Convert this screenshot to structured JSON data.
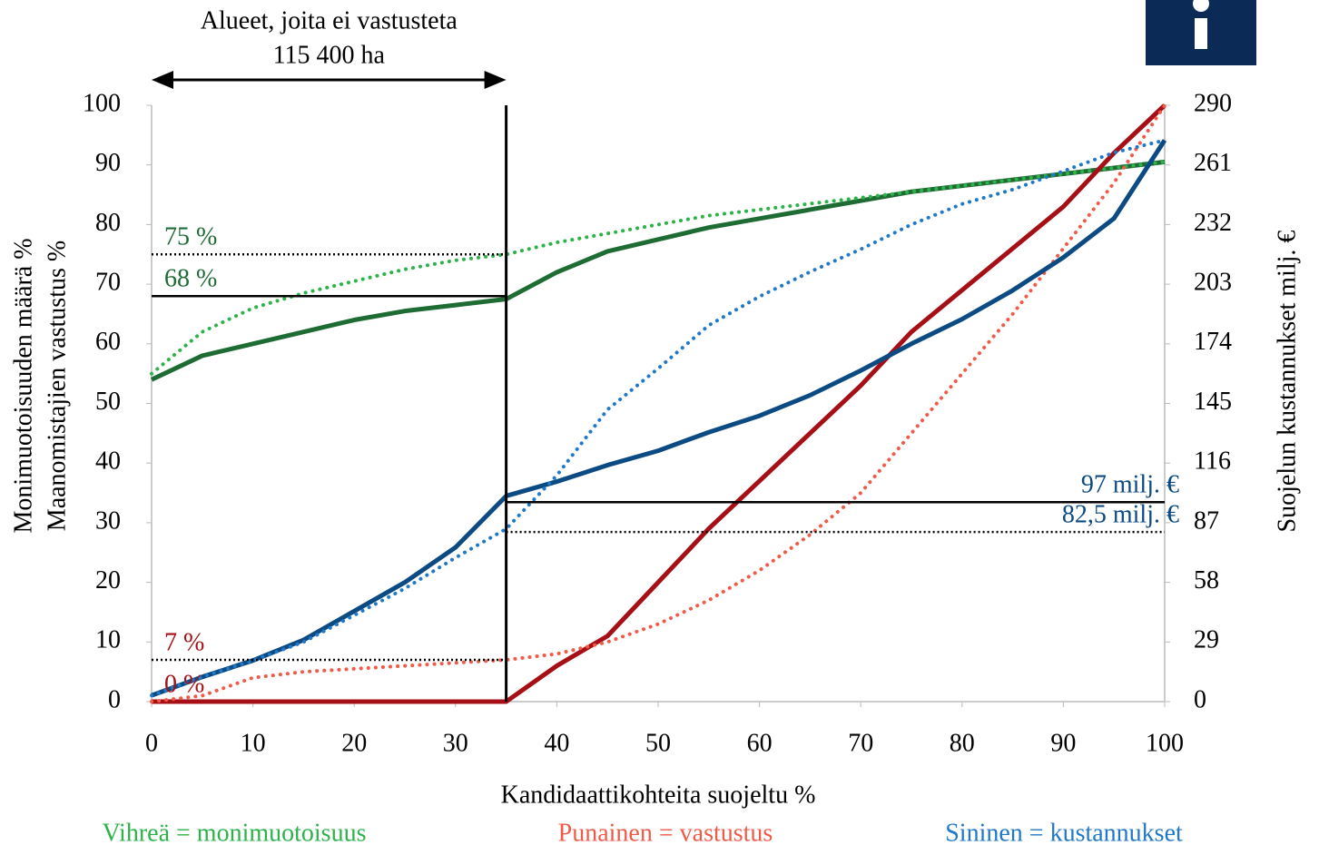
{
  "chart_data": {
    "type": "line",
    "header": [
      "Alueet, joita ei vastusteta",
      "115 400 ha"
    ],
    "header_span": [
      0,
      35
    ],
    "xlabel": "Kandidaattikohteita suojeltu %",
    "ylabel": [
      "Monimuotoisuuden määrä %",
      "Maanomistajien vastustus %"
    ],
    "y2label": "Suojelun kustannukset milj. €",
    "x": [
      0,
      5,
      10,
      15,
      20,
      25,
      30,
      35,
      40,
      45,
      50,
      55,
      60,
      65,
      70,
      75,
      80,
      85,
      90,
      95,
      100
    ],
    "xlim": [
      0,
      100
    ],
    "xticks": [
      0,
      10,
      20,
      30,
      40,
      50,
      60,
      70,
      80,
      90,
      100
    ],
    "ylim": [
      0,
      100
    ],
    "yticks": [
      0,
      10,
      20,
      30,
      40,
      50,
      60,
      70,
      80,
      90,
      100
    ],
    "y2lim": [
      0,
      290
    ],
    "y2ticks": [
      0,
      29,
      58,
      87,
      116,
      145,
      174,
      203,
      232,
      261,
      290
    ],
    "series": [
      {
        "color": "#1e6b34",
        "style": "solid",
        "values": [
          54,
          58,
          60,
          62,
          64,
          65.5,
          66.5,
          67.5,
          72,
          75.5,
          77.5,
          79.5,
          81,
          82.5,
          84,
          85.5,
          86.5,
          87.5,
          88.5,
          89.5,
          90.5
        ]
      },
      {
        "color": "#2db34a",
        "style": "dotted",
        "values": [
          55,
          62,
          66,
          68.5,
          70.5,
          72.5,
          74,
          75,
          77,
          78.5,
          80,
          81.5,
          82.5,
          83.5,
          84.5,
          85.5,
          86.5,
          87.5,
          88.5,
          89.5,
          90.5
        ]
      },
      {
        "color": "#a50f15",
        "style": "solid",
        "values": [
          0,
          0,
          0,
          0,
          0,
          0,
          0,
          0,
          6,
          11,
          20,
          29,
          37,
          45,
          53,
          62,
          69,
          76,
          83,
          92,
          100
        ]
      },
      {
        "color": "#f05a48",
        "style": "dotted",
        "values": [
          0,
          1,
          4,
          5,
          5.5,
          6,
          6.5,
          7,
          8,
          10,
          13,
          17,
          22,
          28,
          35,
          45,
          55,
          65,
          76,
          87,
          100
        ]
      },
      {
        "color": "#0b4a82",
        "style": "solid",
        "axis": "y2",
        "values": [
          3,
          12,
          20,
          30,
          44,
          58,
          75,
          100,
          107,
          115,
          122,
          131,
          139,
          149,
          161,
          174,
          186,
          200,
          216,
          235,
          273
        ]
      },
      {
        "color": "#1f78c8",
        "style": "dotted",
        "axis": "y2",
        "values": [
          3,
          12,
          20,
          29,
          42,
          55,
          70,
          84,
          110,
          142,
          162,
          183,
          197,
          209,
          220,
          232,
          242,
          249,
          258,
          267,
          273
        ]
      }
    ],
    "vertical_line": 35,
    "reference_lines": [
      {
        "value": 75,
        "label": "75 %",
        "style": "dotted",
        "from": 0,
        "to": 35,
        "color": "#1e6b34"
      },
      {
        "value": 68,
        "label": "68 %",
        "style": "solid",
        "from": 0,
        "to": 35,
        "color": "#1e6b34"
      },
      {
        "value": 7,
        "label": "7 %",
        "style": "dotted",
        "from": 0,
        "to": 35,
        "color": "#a50f15"
      },
      {
        "value": 0,
        "label": "0 %",
        "from": 0,
        "to": 35,
        "color": "#a50f15"
      },
      {
        "value": 97,
        "label": "97 milj. €",
        "style": "solid",
        "axis": "y2",
        "from": 35,
        "to": 100,
        "color": "#0b4a82"
      },
      {
        "value": 82.5,
        "label": "82,5 milj. €",
        "style": "dotted",
        "axis": "y2",
        "from": 35,
        "to": 100,
        "color": "#0b4a82"
      }
    ],
    "notes": [
      {
        "text": "Vihreä = monimuotoisuus",
        "color": "#2db34a"
      },
      {
        "text": "Punainen = vastustus",
        "color": "#f05a48"
      },
      {
        "text": "Sininen = kustannukset",
        "color": "#1f78c8"
      }
    ]
  }
}
